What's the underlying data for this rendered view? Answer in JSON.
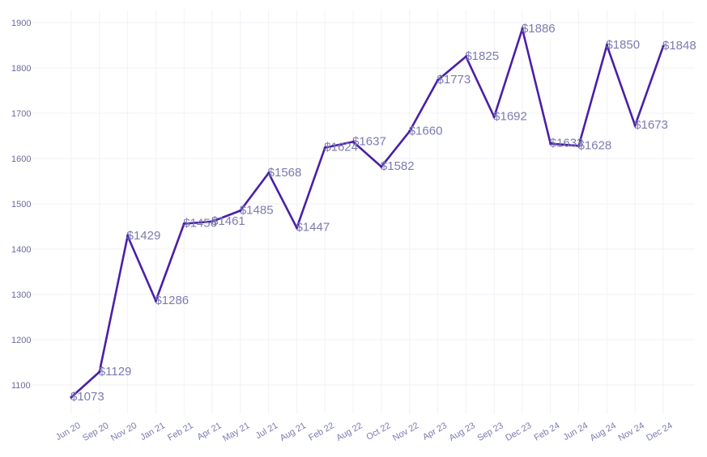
{
  "chart_data": {
    "type": "line",
    "categories": [
      "Jun 20",
      "Sep 20",
      "Nov 20",
      "Jan 21",
      "Feb 21",
      "Apr 21",
      "May 21",
      "Jul 21",
      "Aug 21",
      "Feb 22",
      "Aug 22",
      "Oct 22",
      "Nov 22",
      "Apr 23",
      "Aug 23",
      "Sep 23",
      "Dec 23",
      "Feb 24",
      "Jun 24",
      "Aug 24",
      "Nov 24",
      "Dec 24"
    ],
    "series": [
      {
        "values": [
          1073,
          1129,
          1429,
          1286,
          1456,
          1461,
          1485,
          1568,
          1447,
          1624,
          1637,
          1582,
          1660,
          1773,
          1825,
          1692,
          1886,
          1633,
          1628,
          1850,
          1673,
          1848
        ],
        "labels": [
          "$1073",
          "$1129",
          "$1429",
          "$1286",
          "$1456",
          "$1461",
          "$1485",
          "$1568",
          "$1447",
          "$1624",
          "$1637",
          "$1582",
          "$1660",
          "$1773",
          "$1825",
          "$1692",
          "$1886",
          "$1633",
          "$1628",
          "$1850",
          "$1673",
          "$1848"
        ]
      }
    ],
    "yticks": [
      "1100",
      "1200",
      "1300",
      "1400",
      "1500",
      "1600",
      "1700",
      "1800",
      "1900"
    ],
    "ylim": [
      1000,
      1950
    ],
    "grid": true,
    "line_color": "#4a1fa8",
    "label_color": "#7b7bb0",
    "legend": "none"
  }
}
